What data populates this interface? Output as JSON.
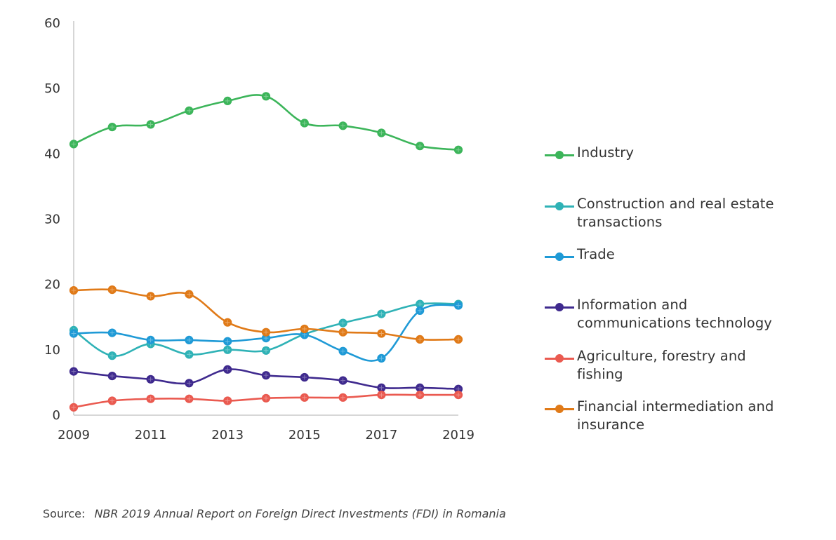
{
  "chart_data": {
    "type": "line",
    "x": [
      2009,
      2010,
      2011,
      2012,
      2013,
      2014,
      2015,
      2016,
      2017,
      2018,
      2019
    ],
    "x_tick_labels": [
      "2009",
      "2011",
      "2013",
      "2015",
      "2017",
      "2019"
    ],
    "y_tick_labels": [
      "0",
      "10",
      "20",
      "30",
      "40",
      "50",
      "60"
    ],
    "ylim": [
      0,
      60
    ],
    "xlim": [
      2009,
      2019
    ],
    "grid": false,
    "smooth": true,
    "markers": "circle",
    "legend_position": "right",
    "series": [
      {
        "name": "Industry",
        "color": "#3cb55a",
        "values": [
          41.5,
          44.1,
          44.5,
          46.6,
          48.1,
          48.8,
          44.7,
          44.3,
          43.2,
          41.2,
          40.6
        ]
      },
      {
        "name": "Construction and real estate transactions",
        "color": "#2fb2b6",
        "values": [
          13.0,
          9.1,
          10.9,
          9.3,
          10.0,
          9.9,
          12.4,
          14.1,
          15.5,
          17.0,
          17.0
        ]
      },
      {
        "name": "Trade",
        "color": "#1f9ad6",
        "values": [
          12.5,
          12.6,
          11.5,
          11.5,
          11.3,
          11.8,
          12.3,
          9.8,
          8.7,
          16.0,
          16.8
        ]
      },
      {
        "name": "Information and communications technology",
        "color": "#3f2a8e",
        "values": [
          6.7,
          6.0,
          5.5,
          4.9,
          7.0,
          6.1,
          5.8,
          5.3,
          4.2,
          4.2,
          4.0
        ]
      },
      {
        "name": "Agriculture, forestry and fishing",
        "color": "#ea5a50",
        "values": [
          1.2,
          2.2,
          2.5,
          2.5,
          2.2,
          2.6,
          2.7,
          2.7,
          3.1,
          3.1,
          3.1
        ]
      },
      {
        "name": "Financial intermediation and insurance",
        "color": "#e07a18",
        "values": [
          19.1,
          19.2,
          18.2,
          18.5,
          14.2,
          12.7,
          13.2,
          12.7,
          12.5,
          11.6,
          11.6
        ]
      }
    ],
    "legend": [
      {
        "lines": [
          "Industry"
        ],
        "color": "#3cb55a"
      },
      {
        "lines": [
          "Construction and real estate",
          "transactions"
        ],
        "color": "#2fb2b6"
      },
      {
        "lines": [
          "Trade"
        ],
        "color": "#1f9ad6"
      },
      {
        "lines": [
          "Information and",
          "communications technology"
        ],
        "color": "#3f2a8e"
      },
      {
        "lines": [
          "Agriculture, forestry and",
          "fishing"
        ],
        "color": "#ea5a50"
      },
      {
        "lines": [
          "Financial intermediation and",
          "insurance"
        ],
        "color": "#e07a18"
      }
    ]
  },
  "source": {
    "label": "Source:",
    "text": "NBR 2019  Annual Report on Foreign Direct Investments (FDI) in Romania"
  }
}
